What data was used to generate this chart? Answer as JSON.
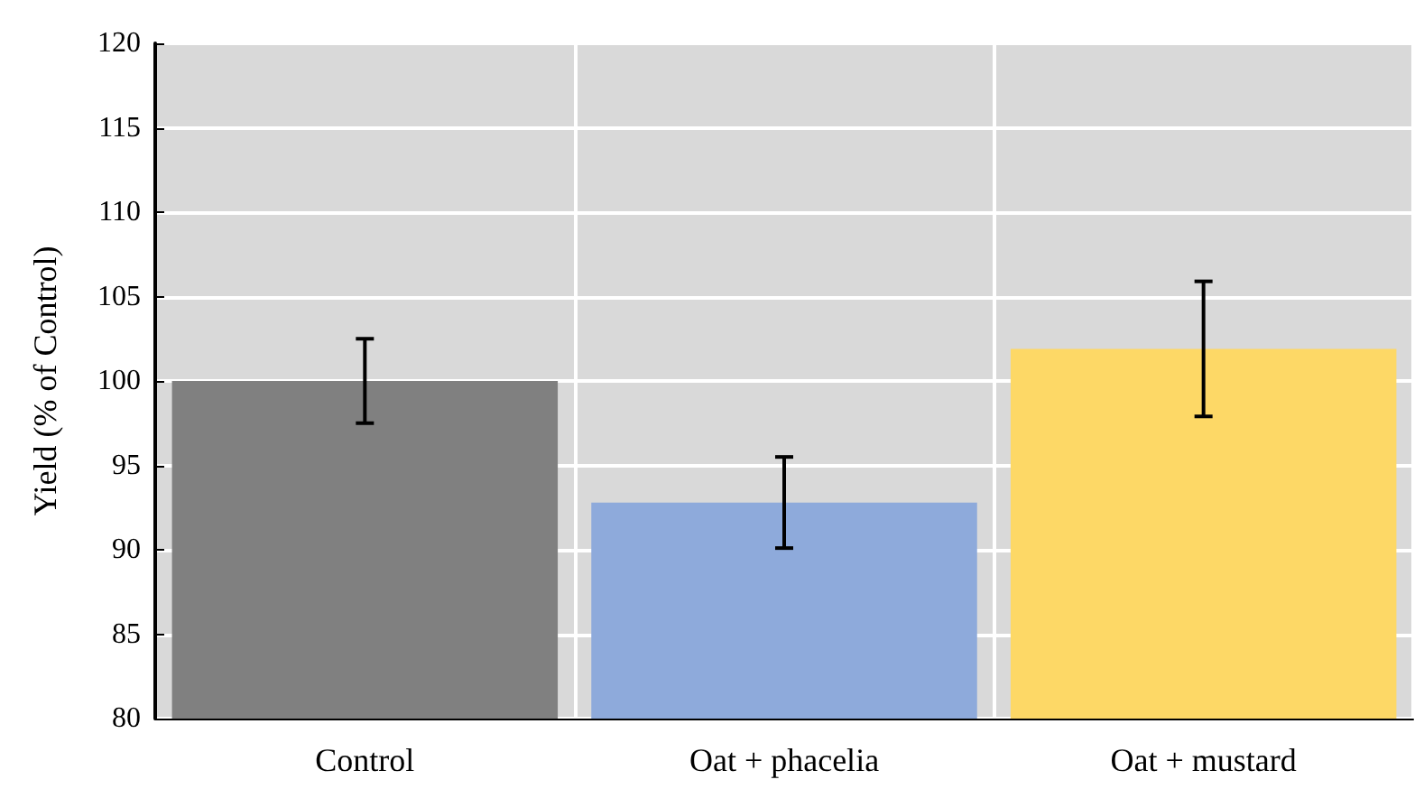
{
  "chart_data": {
    "type": "bar",
    "ylabel": "Yield (% of Control)",
    "categories": [
      "Control",
      "Oat + phacelia",
      "Oat + mustard"
    ],
    "values": [
      100,
      92.8,
      101.9
    ],
    "colors": [
      "#808080",
      "#8eaadb",
      "#fdd866"
    ],
    "errors": [
      2.5,
      2.7,
      4
    ],
    "ylim": [
      80,
      120
    ],
    "yticks": [
      80,
      85,
      90,
      95,
      100,
      105,
      110,
      115,
      120
    ],
    "grid": true
  }
}
